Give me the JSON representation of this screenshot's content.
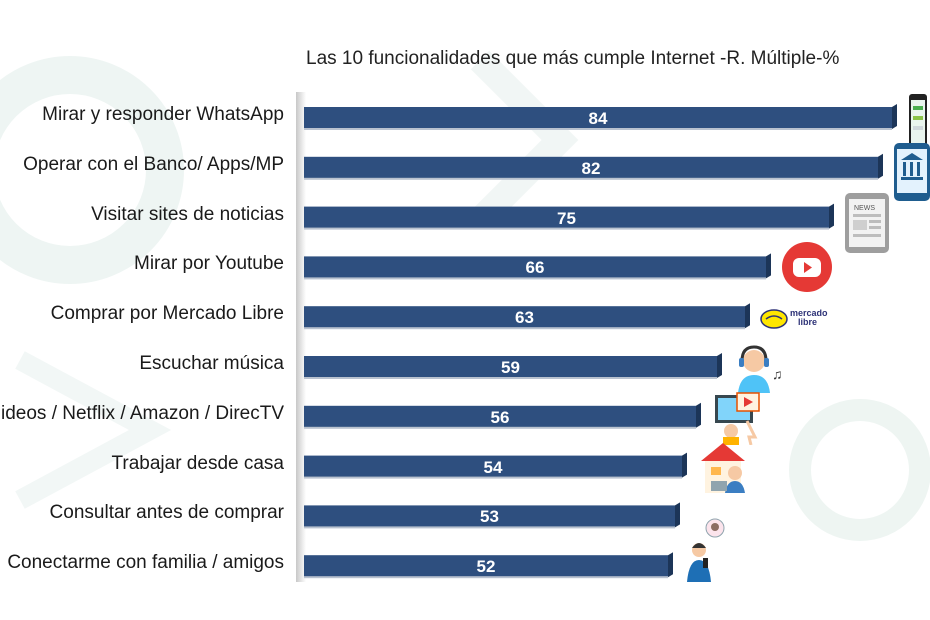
{
  "chart_data": {
    "type": "bar",
    "orientation": "horizontal",
    "title": "Las 10 funcionalidades que más cumple Internet -R. Múltiple-%",
    "categories": [
      "Mirar y responder WhatsApp",
      "Operar con el Banco/ Apps/MP",
      "Visitar sites de noticias",
      "Mirar por Youtube",
      "Comprar por Mercado Libre",
      "Escuchar música",
      "ideos / Netflix / Amazon / DirecTV",
      "Trabajar desde casa",
      "Consultar antes de comprar",
      "Conectarme con familia / amigos"
    ],
    "values": [
      84,
      82,
      75,
      66,
      63,
      59,
      56,
      54,
      53,
      52
    ],
    "bar_color": "#2e4f7f",
    "bar_edge_color": "#1c3558",
    "value_label_color": "#ffffff",
    "grid": false,
    "legend": "none"
  },
  "icons": [
    "smartphone-icon",
    "bank-app-icon",
    "news-tablet-icon",
    "youtube-icon",
    "mercado-libre-logo",
    "music-listener-icon",
    "streaming-video-icon",
    "work-from-home-icon",
    "",
    "video-call-icon"
  ],
  "mercado_libre_logo_text": "mercado libre",
  "news_icon_text": "NEWS"
}
